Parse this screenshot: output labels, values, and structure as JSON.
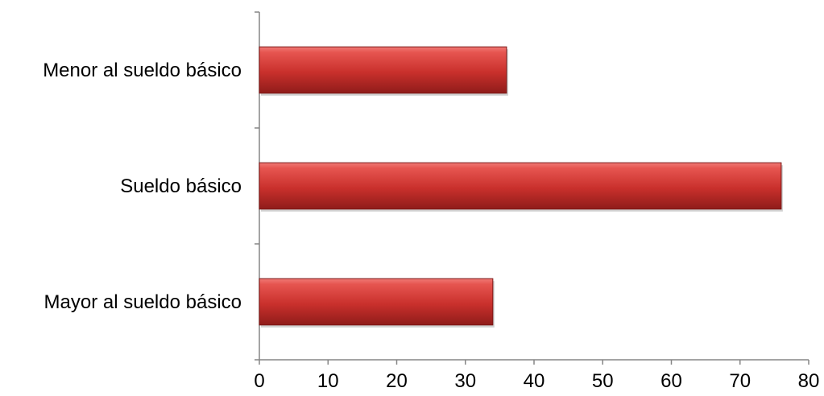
{
  "chart_data": {
    "type": "bar",
    "orientation": "horizontal",
    "title": "",
    "xlabel": "",
    "ylabel": "",
    "categories": [
      "Menor al sueldo básico",
      "Sueldo básico",
      "Mayor al sueldo básico"
    ],
    "values": [
      36,
      76,
      34
    ],
    "xlim": [
      0,
      80
    ],
    "xticks": [
      0,
      10,
      20,
      30,
      40,
      50,
      60,
      70,
      80
    ],
    "grid": false,
    "legend": "none",
    "bar_color": "#c0322f"
  }
}
